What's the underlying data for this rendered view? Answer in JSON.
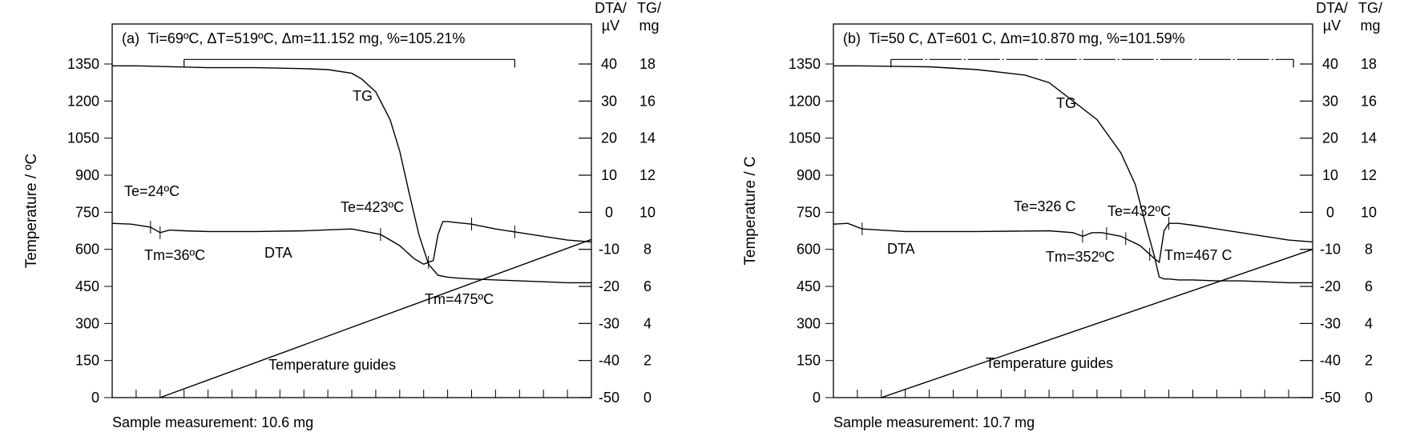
{
  "chart_data": [
    {
      "panel": "(a)",
      "type": "line",
      "header": "Ti=69ºC, ΔT=519ºC, Δm=11.152 mg, %=105.21%",
      "ylabel_left": "Temperature / ºC",
      "y_left_ticks": [
        "0",
        "150",
        "300",
        "450",
        "600",
        "750",
        "900",
        "1050",
        "1200",
        "1350"
      ],
      "ylim_left": [
        0,
        1350
      ],
      "ylabel_dta": "DTA/\nµV",
      "y_dta_ticks": [
        "-50",
        "-40",
        "-30",
        "-20",
        "-10",
        "0",
        "10",
        "20",
        "30",
        "40"
      ],
      "ylim_dta": [
        -50,
        40
      ],
      "ylabel_tg": "TG/\nmg",
      "y_tg_ticks": [
        "0",
        "2",
        "4",
        "6",
        "8",
        "10",
        "12",
        "14",
        "16",
        "18"
      ],
      "ylim_tg": [
        0,
        18
      ],
      "caption": "Sample measurement: 10.6 mg",
      "series": [
        {
          "name": "TG",
          "axis": "tg",
          "x": [
            0,
            0.05,
            0.2,
            0.3,
            0.4,
            0.45,
            0.5,
            0.52,
            0.55,
            0.58,
            0.6,
            0.62,
            0.64,
            0.66,
            0.68,
            0.7,
            0.72,
            0.75,
            0.8,
            0.85,
            0.9,
            0.95,
            1.0
          ],
          "values": [
            17.9,
            17.9,
            17.8,
            17.8,
            17.75,
            17.7,
            17.5,
            17.2,
            16.5,
            15.0,
            13.3,
            11.0,
            8.8,
            7.2,
            6.6,
            6.5,
            6.45,
            6.4,
            6.35,
            6.3,
            6.25,
            6.2,
            6.2
          ]
        },
        {
          "name": "DTA",
          "axis": "dta",
          "x": [
            0,
            0.04,
            0.08,
            0.1,
            0.12,
            0.15,
            0.2,
            0.3,
            0.4,
            0.5,
            0.56,
            0.6,
            0.63,
            0.65,
            0.67,
            0.68,
            0.69,
            0.7,
            0.72,
            0.75,
            0.8,
            0.85,
            0.9,
            0.95,
            1.0
          ],
          "values": [
            -3.0,
            -3.2,
            -4.0,
            -5.5,
            -4.8,
            -5.0,
            -5.2,
            -5.2,
            -5.0,
            -4.5,
            -6.0,
            -9.0,
            -12.5,
            -14.0,
            -13.0,
            -6.0,
            -2.5,
            -2.5,
            -2.8,
            -3.2,
            -4.5,
            -5.5,
            -6.5,
            -7.5,
            -8.0
          ]
        },
        {
          "name": "Temperature guides",
          "axis": "left",
          "x": [
            0.1,
            1.0
          ],
          "values": [
            0,
            640
          ]
        }
      ],
      "annotations": [
        {
          "text": "TG"
        },
        {
          "text": "Te=24ºC"
        },
        {
          "text": "Tm=36ºC"
        },
        {
          "text": "DTA"
        },
        {
          "text": "Te=423ºC"
        },
        {
          "text": "Tm=475ºC"
        },
        {
          "text": "Temperature guides"
        }
      ],
      "grid": false,
      "legend": "none"
    },
    {
      "panel": "(b)",
      "type": "line",
      "header": "Ti=50 C, ΔT=601 C, Δm=10.870 mg, %=101.59%",
      "ylabel_left": "Temperature / C",
      "y_left_ticks": [
        "0",
        "150",
        "300",
        "450",
        "600",
        "750",
        "900",
        "1050",
        "1200",
        "1350"
      ],
      "ylim_left": [
        0,
        1350
      ],
      "ylabel_dta": "DTA/\nµV",
      "y_dta_ticks": [
        "-50",
        "-40",
        "-30",
        "-20",
        "-10",
        "0",
        "10",
        "20",
        "30",
        "40"
      ],
      "ylim_dta": [
        -50,
        40
      ],
      "ylabel_tg": "TG/\nmg",
      "y_tg_ticks": [
        "0",
        "2",
        "4",
        "6",
        "8",
        "10",
        "12",
        "14",
        "16",
        "18"
      ],
      "ylim_tg": [
        0,
        18
      ],
      "caption": "Sample measurement: 10.7 mg",
      "series": [
        {
          "name": "TG",
          "axis": "tg",
          "x": [
            0,
            0.05,
            0.2,
            0.3,
            0.4,
            0.45,
            0.5,
            0.55,
            0.6,
            0.63,
            0.65,
            0.67,
            0.68,
            0.69,
            0.7,
            0.72,
            0.75,
            0.8,
            0.85,
            0.9,
            0.95,
            1.0
          ],
          "values": [
            17.9,
            17.9,
            17.85,
            17.7,
            17.4,
            17.0,
            16.0,
            15.0,
            13.2,
            11.5,
            9.5,
            7.6,
            6.5,
            6.4,
            6.4,
            6.35,
            6.35,
            6.3,
            6.3,
            6.25,
            6.2,
            6.2
          ]
        },
        {
          "name": "DTA",
          "axis": "dta",
          "x": [
            0,
            0.03,
            0.06,
            0.15,
            0.3,
            0.45,
            0.5,
            0.52,
            0.54,
            0.56,
            0.58,
            0.6,
            0.64,
            0.67,
            0.68,
            0.69,
            0.7,
            0.72,
            0.75,
            0.8,
            0.85,
            0.9,
            0.95,
            1.0
          ],
          "values": [
            -3.2,
            -3.0,
            -4.5,
            -5.2,
            -5.2,
            -5.0,
            -5.5,
            -6.5,
            -5.5,
            -5.5,
            -6.0,
            -6.5,
            -9.0,
            -12.5,
            -13.5,
            -5.0,
            -3.0,
            -3.0,
            -3.5,
            -4.5,
            -5.5,
            -6.5,
            -7.5,
            -8.0
          ]
        },
        {
          "name": "Temperature guides",
          "axis": "left",
          "x": [
            0.1,
            1.0
          ],
          "values": [
            0,
            600
          ]
        }
      ],
      "annotations": [
        {
          "text": "TG"
        },
        {
          "text": "DTA"
        },
        {
          "text": "Te=326 C"
        },
        {
          "text": "Tm=352ºC"
        },
        {
          "text": "Te=432ºC"
        },
        {
          "text": "Tm=467 C"
        },
        {
          "text": "Temperature guides"
        }
      ],
      "grid": false,
      "legend": "none"
    }
  ]
}
